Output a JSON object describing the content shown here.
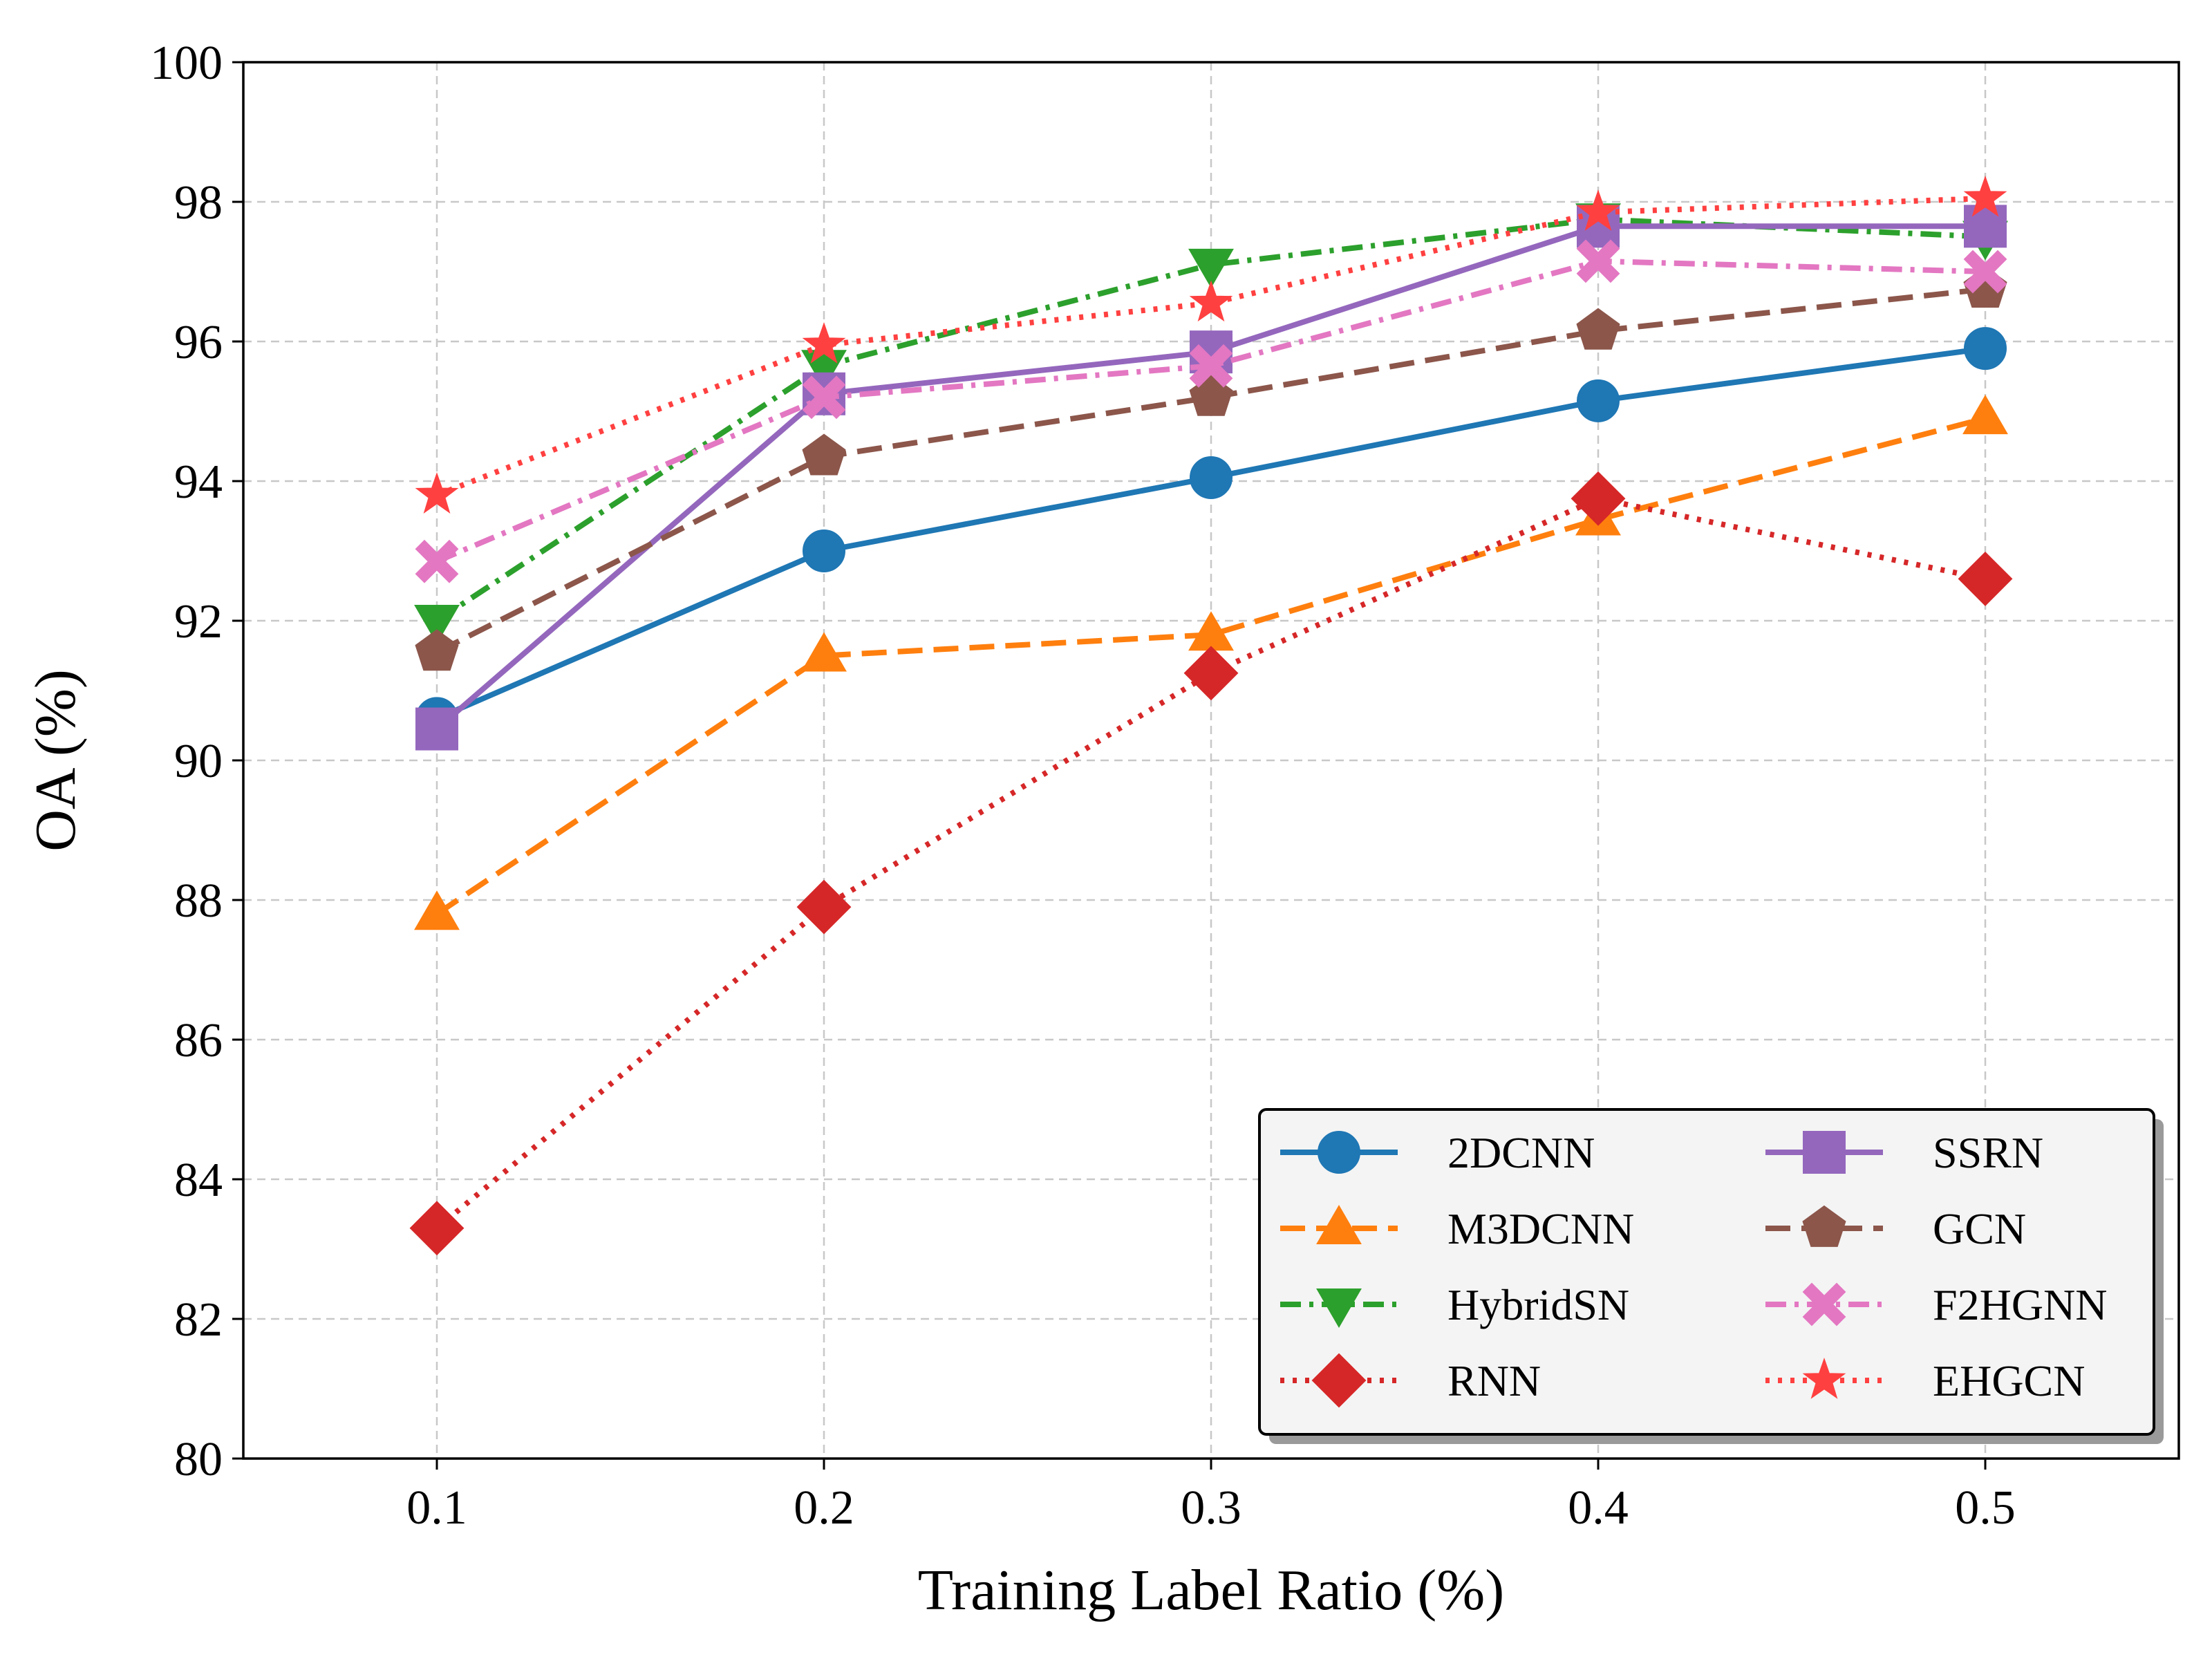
{
  "chart_data": {
    "type": "line",
    "x": [
      0.1,
      0.2,
      0.3,
      0.4,
      0.5
    ],
    "x_tick_labels": [
      "0.1",
      "0.2",
      "0.3",
      "0.4",
      "0.5"
    ],
    "xlim": [
      0.05,
      0.55
    ],
    "ylim": [
      80,
      100
    ],
    "y_ticks": [
      80,
      82,
      84,
      86,
      88,
      90,
      92,
      94,
      96,
      98,
      100
    ],
    "xlabel": "Training Label Ratio (%)",
    "ylabel": "OA (%)",
    "grid": true,
    "legend": {
      "position": "lower-right",
      "columns": 2
    },
    "series": [
      {
        "name": "2DCNN",
        "values": [
          90.6,
          93.0,
          94.05,
          95.15,
          95.9
        ],
        "color": "#1f77b4",
        "dash": "solid",
        "marker": "circle"
      },
      {
        "name": "M3DCNN",
        "values": [
          87.8,
          91.5,
          91.8,
          93.45,
          94.9
        ],
        "color": "#ff7f0e",
        "dash": "dashed",
        "marker": "triangle-up"
      },
      {
        "name": "HybridSN",
        "values": [
          92.0,
          95.65,
          97.1,
          97.75,
          97.5
        ],
        "color": "#2ca02c",
        "dash": "dashdot",
        "marker": "triangle-down"
      },
      {
        "name": "RNN",
        "values": [
          83.3,
          87.9,
          91.25,
          93.75,
          92.6
        ],
        "color": "#d62728",
        "dash": "dotted",
        "marker": "diamond"
      },
      {
        "name": "SSRN",
        "values": [
          90.45,
          95.25,
          95.85,
          97.65,
          97.65
        ],
        "color": "#9467bd",
        "dash": "solid",
        "marker": "square"
      },
      {
        "name": "GCN",
        "values": [
          91.55,
          94.35,
          95.2,
          96.15,
          96.75
        ],
        "color": "#8c564b",
        "dash": "dashed",
        "marker": "pentagon"
      },
      {
        "name": "F2HGNN",
        "values": [
          92.85,
          95.2,
          95.65,
          97.15,
          97.0
        ],
        "color": "#e377c2",
        "dash": "dashdot",
        "marker": "x-filled"
      },
      {
        "name": "EHGCN",
        "values": [
          93.8,
          95.95,
          96.55,
          97.85,
          98.05
        ],
        "color": "#ff4040",
        "dash": "dotted",
        "marker": "star"
      }
    ]
  }
}
